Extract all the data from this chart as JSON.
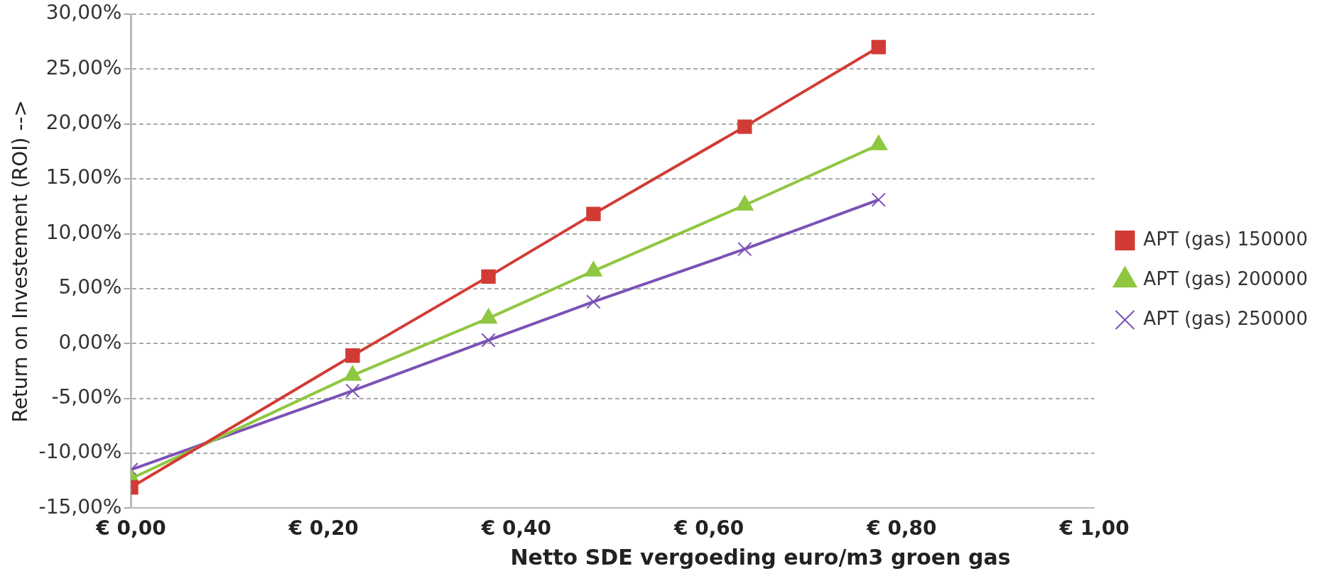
{
  "chart_data": {
    "type": "line",
    "xlabel": "Netto SDE  vergoeding euro/m3 groen gas",
    "ylabel": "Return on Investement (ROI) -->",
    "x": [
      0,
      0.23,
      0.371,
      0.48,
      0.637,
      0.776
    ],
    "series": [
      {
        "name": "APT (gas) 150000",
        "color": "#d23b35",
        "marker": "square",
        "values": [
          -13.1,
          -1.1,
          6.1,
          11.8,
          19.75,
          27.0
        ]
      },
      {
        "name": "APT (gas) 200000",
        "color": "#8fc740",
        "marker": "triangle",
        "values": [
          -12.3,
          -2.9,
          2.3,
          6.6,
          12.6,
          18.1
        ]
      },
      {
        "name": "APT (gas) 250000",
        "color": "#7b52b5",
        "marker": "cross",
        "values": [
          -11.5,
          -4.3,
          0.3,
          3.8,
          8.6,
          13.1
        ]
      }
    ],
    "xlim": [
      0,
      1
    ],
    "xticks": [
      {
        "value": 0,
        "label": "€ 0,00"
      },
      {
        "value": 0.2,
        "label": "€ 0,20"
      },
      {
        "value": 0.4,
        "label": "€ 0,40"
      },
      {
        "value": 0.6,
        "label": "€ 0,60"
      },
      {
        "value": 0.8,
        "label": "€ 0,80"
      },
      {
        "value": 1,
        "label": "€ 1,00"
      }
    ],
    "ylim": [
      -15,
      30
    ],
    "yticks": [
      {
        "value": -15,
        "label": "-15,00%"
      },
      {
        "value": -10,
        "label": "-10,00%"
      },
      {
        "value": -5,
        "label": "-5,00%"
      },
      {
        "value": 0,
        "label": "0,00%"
      },
      {
        "value": 5,
        "label": "5,00%"
      },
      {
        "value": 10,
        "label": "10,00%"
      },
      {
        "value": 15,
        "label": "15,00%"
      },
      {
        "value": 20,
        "label": "20,00%"
      },
      {
        "value": 25,
        "label": "25,00%"
      },
      {
        "value": 30,
        "label": "30,00%"
      }
    ],
    "grid": "y",
    "legend": "right"
  }
}
